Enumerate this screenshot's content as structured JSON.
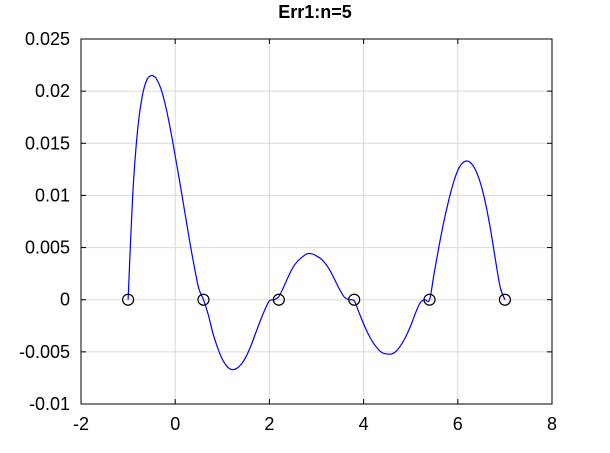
{
  "chart_data": {
    "type": "line",
    "title": "Err1:n=5",
    "xlabel": "",
    "ylabel": "",
    "xlim": [
      -2,
      8
    ],
    "ylim": [
      -0.01,
      0.025
    ],
    "xticks": [
      -2,
      0,
      2,
      4,
      6,
      8
    ],
    "xtick_labels": [
      "-2",
      "0",
      "2",
      "4",
      "6",
      "8"
    ],
    "yticks": [
      -0.01,
      -0.005,
      0,
      0.005,
      0.01,
      0.015,
      0.02,
      0.025
    ],
    "ytick_labels": [
      "-0.01",
      "-0.005",
      "0",
      "0.005",
      "0.01",
      "0.015",
      "0.02",
      "0.025"
    ],
    "grid": true,
    "series": [
      {
        "color": "#0000ff",
        "x": [
          -1.0,
          -0.9,
          -0.8,
          -0.7,
          -0.6,
          -0.5,
          -0.45,
          -0.4,
          -0.3,
          -0.2,
          -0.1,
          0.0,
          0.1,
          0.2,
          0.3,
          0.4,
          0.5,
          0.6,
          0.7,
          0.8,
          0.9,
          1.0,
          1.1,
          1.2,
          1.3,
          1.4,
          1.5,
          1.6,
          1.7,
          1.8,
          1.9,
          2.0,
          2.1,
          2.2,
          2.3,
          2.4,
          2.5,
          2.6,
          2.7,
          2.8,
          2.9,
          3.0,
          3.1,
          3.2,
          3.3,
          3.4,
          3.5,
          3.6,
          3.7,
          3.8,
          3.9,
          4.0,
          4.1,
          4.2,
          4.3,
          4.4,
          4.5,
          4.6,
          4.7,
          4.8,
          4.9,
          5.0,
          5.1,
          5.2,
          5.3,
          5.4,
          5.5,
          5.6,
          5.7,
          5.8,
          5.9,
          6.0,
          6.1,
          6.2,
          6.3,
          6.4,
          6.5,
          6.6,
          6.7,
          6.8,
          6.9,
          7.0
        ],
        "y": [
          0.0,
          0.0102,
          0.0162,
          0.0195,
          0.0211,
          0.0215,
          0.0214,
          0.0212,
          0.0202,
          0.0185,
          0.0163,
          0.0138,
          0.0112,
          0.0085,
          0.0058,
          0.0033,
          0.0011,
          0.0,
          -0.0014,
          -0.0032,
          -0.0046,
          -0.0057,
          -0.0064,
          -0.0067,
          -0.0066,
          -0.0062,
          -0.0055,
          -0.0045,
          -0.0033,
          -0.0021,
          -0.001,
          -0.0001,
          0.0,
          0.0003,
          0.0012,
          0.0022,
          0.0031,
          0.0037,
          0.0041,
          0.0044,
          0.0044,
          0.0042,
          0.0039,
          0.0034,
          0.0027,
          0.0018,
          0.0009,
          0.0002,
          0.0,
          -0.0001,
          -0.0012,
          -0.0023,
          -0.0033,
          -0.0041,
          -0.0047,
          -0.0051,
          -0.0052,
          -0.0052,
          -0.0049,
          -0.0043,
          -0.0035,
          -0.0025,
          -0.0013,
          -0.0003,
          0.0,
          0.0,
          0.0026,
          0.0051,
          0.0074,
          0.0094,
          0.0111,
          0.0124,
          0.0131,
          0.0133,
          0.013,
          0.0122,
          0.0109,
          0.009,
          0.0066,
          0.0038,
          0.0012,
          0.0
        ]
      }
    ],
    "markers": {
      "style": "open-circle",
      "color": "#000000",
      "x": [
        -1.0,
        0.6,
        2.2,
        3.8,
        5.4,
        7.0
      ],
      "y": [
        0,
        0,
        0,
        0,
        0,
        0
      ]
    }
  }
}
